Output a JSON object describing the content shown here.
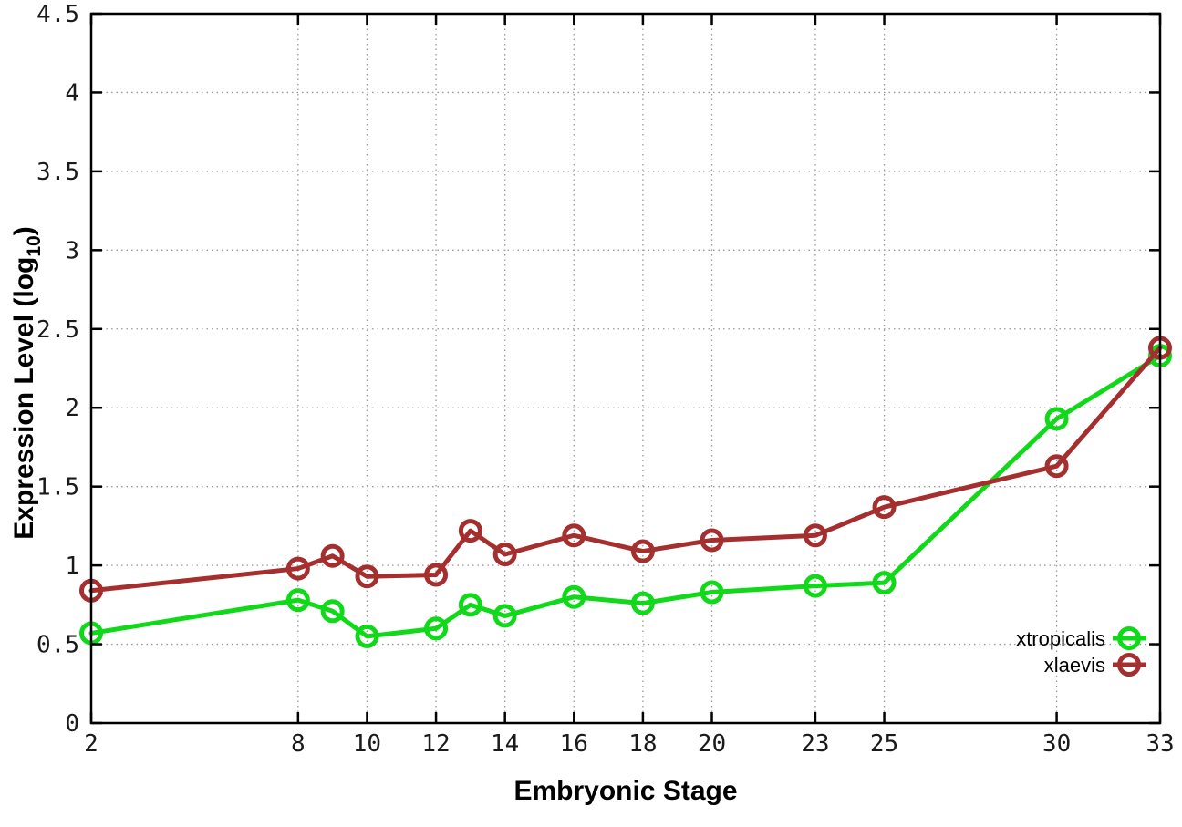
{
  "chart_data": {
    "type": "line",
    "x": [
      2,
      8,
      9,
      10,
      12,
      13,
      14,
      16,
      18,
      20,
      23,
      25,
      30,
      33
    ],
    "series": [
      {
        "name": "xtropicalis",
        "color": "#0fd918",
        "values": [
          0.57,
          0.78,
          0.71,
          0.55,
          0.6,
          0.75,
          0.68,
          0.8,
          0.76,
          0.83,
          0.87,
          0.89,
          1.93,
          2.33
        ]
      },
      {
        "name": "xlaevis",
        "color": "#a52f2f",
        "values": [
          0.84,
          0.98,
          1.06,
          0.93,
          0.94,
          1.22,
          1.07,
          1.19,
          1.09,
          1.16,
          1.19,
          1.37,
          1.63,
          2.38
        ]
      }
    ],
    "xlabel": "Embryonic Stage",
    "ylabel": "Expression Level (log10)",
    "ylabel_parts": {
      "pre": "Expression Level (log",
      "sub": "10",
      "post": ")"
    },
    "x_tick_labels": [
      "2",
      "8",
      "10",
      "12",
      "14",
      "16",
      "18",
      "20",
      "23",
      "25",
      "30",
      "33"
    ],
    "x_tick_values": [
      2,
      8,
      10,
      12,
      14,
      16,
      18,
      20,
      23,
      25,
      30,
      33
    ],
    "y_tick_labels": [
      "0",
      "0.5",
      "1",
      "1.5",
      "2",
      "2.5",
      "3",
      "3.5",
      "4",
      "4.5"
    ],
    "y_tick_values": [
      0,
      0.5,
      1,
      1.5,
      2,
      2.5,
      3,
      3.5,
      4,
      4.5
    ],
    "xlim": [
      2,
      33
    ],
    "ylim": [
      0,
      4.5
    ],
    "grid": true,
    "legend_position": "bottom-right",
    "marker": "open-circle",
    "colors": {
      "background": "#ffffff",
      "axis": "#000000",
      "grid": "#999999",
      "tick_text": "#1a1a1a"
    }
  }
}
